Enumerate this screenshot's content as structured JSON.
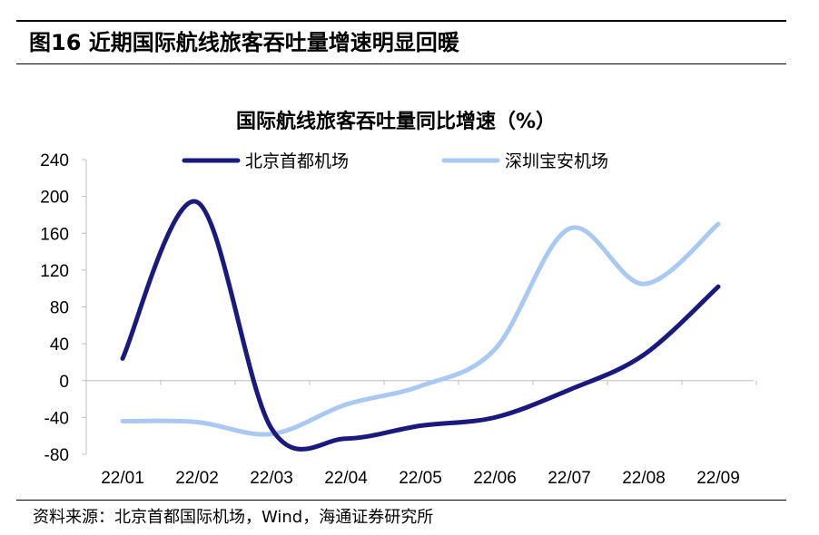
{
  "figure": {
    "title": "图16 近期国际航线旅客吞吐量增速明显回暖",
    "source": "资料来源：北京首都国际机场，Wind，海通证券研究所"
  },
  "chart_data": {
    "type": "line",
    "title": "国际航线旅客吞吐量同比增速（%）",
    "xlabel": "",
    "ylabel": "",
    "categories": [
      "22/01",
      "22/02",
      "22/03",
      "22/04",
      "22/05",
      "22/06",
      "22/07",
      "22/08",
      "22/09"
    ],
    "ylim": [
      -80,
      240
    ],
    "yticks": [
      240,
      200,
      160,
      120,
      80,
      40,
      0,
      -40,
      -80
    ],
    "grid": false,
    "legend_position": "top",
    "series": [
      {
        "name": "北京首都机场",
        "color": "#1a1a7e",
        "values": [
          24,
          194,
          -52,
          -63,
          -49,
          -40,
          -10,
          28,
          102
        ]
      },
      {
        "name": "深圳宝安机场",
        "color": "#a9c8f2",
        "values": [
          -44,
          -45,
          -58,
          -26,
          -6,
          34,
          165,
          105,
          170
        ]
      }
    ]
  }
}
